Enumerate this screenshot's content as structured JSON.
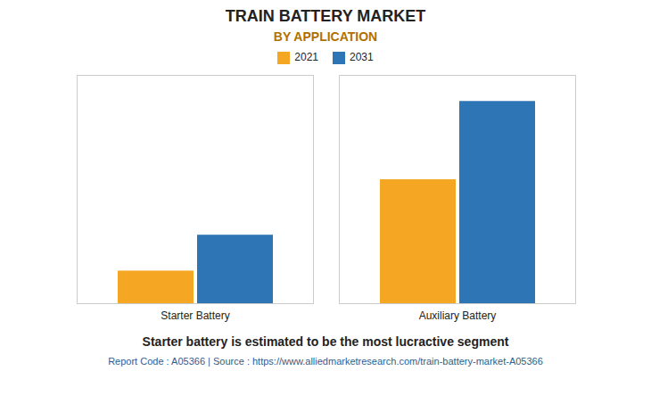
{
  "chart_data": {
    "type": "bar",
    "title": "TRAIN BATTERY MARKET",
    "subtitle": "BY APPLICATION",
    "categories": [
      "Starter Battery",
      "Auxiliary Battery"
    ],
    "series": [
      {
        "name": "2021",
        "color": "#F5A623",
        "values": [
          1.0,
          3.8
        ]
      },
      {
        "name": "2031",
        "color": "#2E75B6",
        "values": [
          2.1,
          6.2
        ]
      }
    ],
    "ylim": [
      0,
      7.0
    ],
    "grid": false,
    "legend": "top",
    "tick_labels": "x",
    "annotations": [
      "Starter battery is estimated to be the most lucractive segment",
      "Report Code : A05366  |  Source : https://www.alliedmarketresearch.com/train-battery-market-A05366"
    ]
  }
}
